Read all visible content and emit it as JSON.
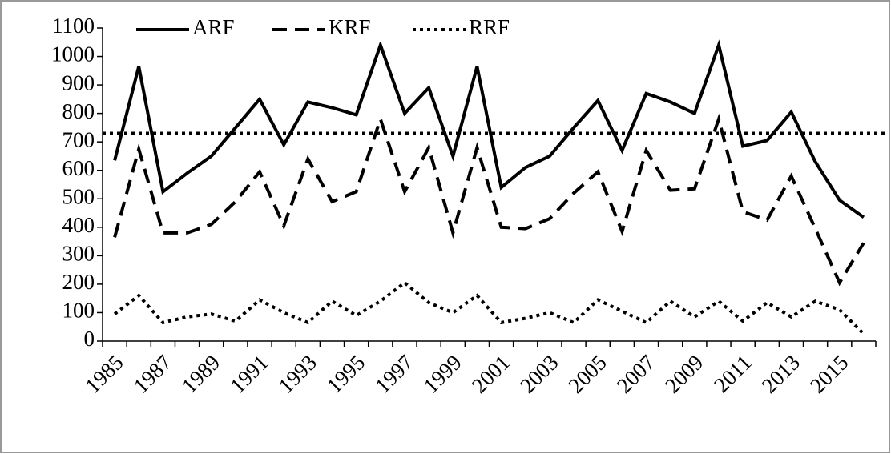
{
  "chart_data": {
    "type": "line",
    "categories": [
      "1985",
      null,
      "1987",
      null,
      "1989",
      null,
      "1991",
      null,
      "1993",
      null,
      "1995",
      null,
      "1997",
      null,
      "1999",
      null,
      "2001",
      null,
      "2003",
      null,
      "2005",
      null,
      "2007",
      null,
      "2009",
      null,
      "2011",
      null,
      "2013",
      null,
      "2015",
      null
    ],
    "series": [
      {
        "name": "ARF",
        "color": "#000000",
        "dash": "solid",
        "values": [
          635,
          965,
          525,
          590,
          650,
          750,
          850,
          690,
          840,
          820,
          795,
          1040,
          800,
          890,
          650,
          965,
          540,
          610,
          650,
          750,
          845,
          670,
          870,
          840,
          800,
          1040,
          685,
          705,
          805,
          630,
          495,
          435
        ]
      },
      {
        "name": "KRF",
        "color": "#000000",
        "dash": "dashed",
        "values": [
          365,
          675,
          380,
          380,
          410,
          490,
          595,
          405,
          640,
          490,
          525,
          780,
          525,
          680,
          380,
          680,
          400,
          395,
          430,
          520,
          595,
          385,
          670,
          530,
          535,
          780,
          455,
          425,
          580,
          395,
          205,
          345
        ]
      },
      {
        "name": "RRF",
        "color": "#000000",
        "dash": "dotted",
        "values": [
          95,
          160,
          65,
          85,
          95,
          70,
          145,
          100,
          65,
          140,
          90,
          140,
          205,
          135,
          100,
          160,
          65,
          80,
          100,
          65,
          145,
          105,
          65,
          140,
          85,
          140,
          70,
          135,
          85,
          140,
          110,
          25
        ]
      }
    ],
    "reference_line": {
      "value": 730,
      "color": "#000000",
      "dash": "dotted"
    },
    "ylim": [
      0,
      1100
    ],
    "yticks": [
      0,
      100,
      200,
      300,
      400,
      500,
      600,
      700,
      800,
      900,
      1000,
      1100
    ],
    "grid": false,
    "legend": "top"
  }
}
